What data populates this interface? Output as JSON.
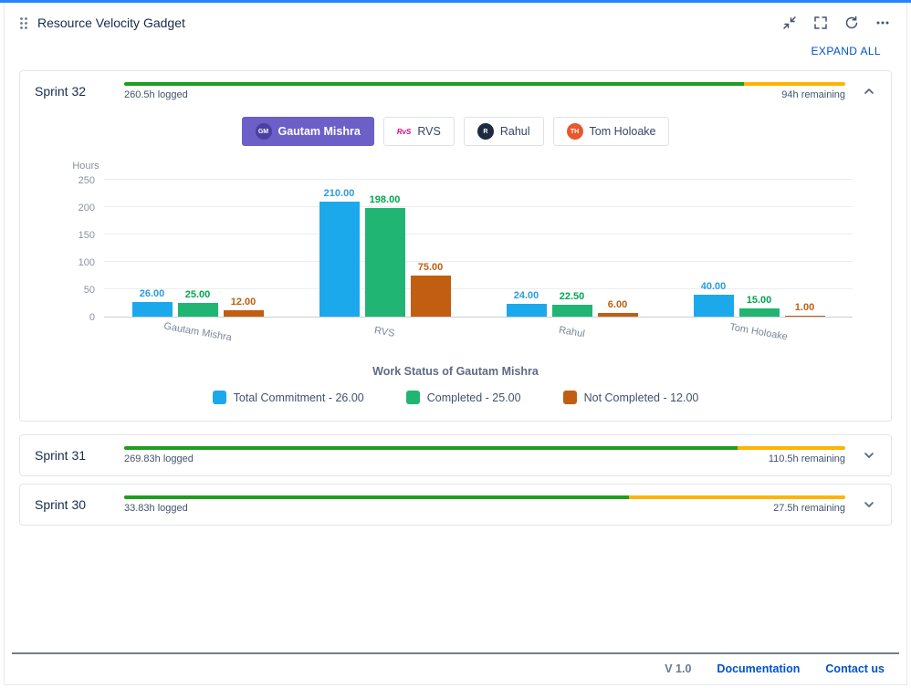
{
  "gadget": {
    "title": "Resource Velocity Gadget",
    "expand_all_label": "EXPAND ALL"
  },
  "tabs": [
    {
      "label": "Gautam Mishra",
      "avatar": "GM",
      "avatar_bg": "#4B3FA0",
      "avatar_color": "#FFFFFF",
      "selected": true
    },
    {
      "label": "RVS",
      "avatar": "RvS",
      "avatar_bg": "",
      "avatar_color": "#E5067E",
      "selected": false
    },
    {
      "label": "Rahul",
      "avatar": "R",
      "avatar_bg": "#1C2B41",
      "avatar_color": "#FFFFFF",
      "selected": false
    },
    {
      "label": "Tom Holoake",
      "avatar": "TH",
      "avatar_bg": "#E8582C",
      "avatar_color": "#FFFFFF",
      "selected": false
    }
  ],
  "sprints": [
    {
      "name": "Sprint 32",
      "logged": "260.5h logged",
      "remaining": "94h remaining",
      "progress_pct": 86,
      "expanded": true
    },
    {
      "name": "Sprint 31",
      "logged": "269.83h logged",
      "remaining": "110.5h remaining",
      "progress_pct": 85,
      "expanded": false
    },
    {
      "name": "Sprint 30",
      "logged": "33.83h logged",
      "remaining": "27.5h remaining",
      "progress_pct": 70,
      "expanded": false
    }
  ],
  "chart_data": {
    "type": "bar",
    "categories": [
      "Gautam Mishra",
      "RVS",
      "Rahul",
      "Tom Holoake"
    ],
    "series": [
      {
        "name": "Total Commitment",
        "color": "#1CA9EC",
        "label_color": "#2D9CDB",
        "values": [
          26,
          210,
          24,
          40
        ]
      },
      {
        "name": "Completed",
        "color": "#21B573",
        "label_color": "#00A651",
        "values": [
          25,
          198,
          22.5,
          15
        ]
      },
      {
        "name": "Not Completed",
        "color": "#C25E11",
        "label_color": "#C25E11",
        "values": [
          12,
          75,
          6,
          1
        ]
      }
    ],
    "title": "Work Status of Gautam Mishra",
    "ylabel": "Hours",
    "xlabel": "",
    "ylim": [
      0,
      250
    ],
    "yticks": [
      0,
      50,
      100,
      150,
      200,
      250
    ],
    "grid": true,
    "legend_position": "bottom",
    "legend": [
      "Total Commitment - 26.00",
      "Completed  - 25.00",
      "Not Completed  - 12.00"
    ]
  },
  "footer": {
    "version": "V 1.0",
    "links": [
      "Documentation",
      "Contact us"
    ]
  },
  "colors": {
    "accent_blue": "#2684FF",
    "link_blue": "#0052CC",
    "progress_green": "#1E9E1E",
    "progress_amber": "#FFB302",
    "selected_tab_purple": "#6C5FC7"
  }
}
